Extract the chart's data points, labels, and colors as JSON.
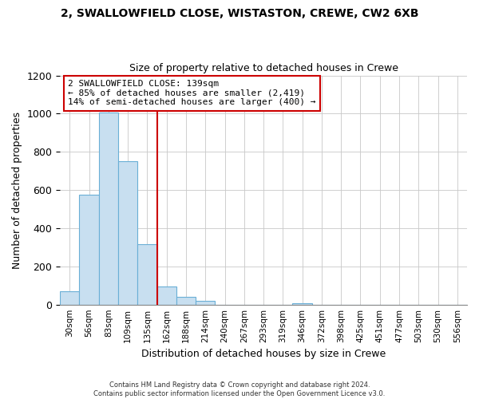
{
  "title": "2, SWALLOWFIELD CLOSE, WISTASTON, CREWE, CW2 6XB",
  "subtitle": "Size of property relative to detached houses in Crewe",
  "xlabel": "Distribution of detached houses by size in Crewe",
  "ylabel": "Number of detached properties",
  "bar_labels": [
    "30sqm",
    "56sqm",
    "83sqm",
    "109sqm",
    "135sqm",
    "162sqm",
    "188sqm",
    "214sqm",
    "240sqm",
    "267sqm",
    "293sqm",
    "319sqm",
    "346sqm",
    "372sqm",
    "398sqm",
    "425sqm",
    "451sqm",
    "477sqm",
    "503sqm",
    "530sqm",
    "556sqm"
  ],
  "bar_heights": [
    70,
    575,
    1005,
    750,
    315,
    95,
    40,
    20,
    0,
    0,
    0,
    0,
    5,
    0,
    0,
    0,
    0,
    0,
    0,
    0,
    0
  ],
  "bar_color": "#c8dff0",
  "bar_edge_color": "#6aafd6",
  "highlight_bar_index": 4,
  "highlight_color": "#cc0000",
  "ylim": [
    0,
    1200
  ],
  "yticks": [
    0,
    200,
    400,
    600,
    800,
    1000,
    1200
  ],
  "annotation_line1": "2 SWALLOWFIELD CLOSE: 139sqm",
  "annotation_line2": "← 85% of detached houses are smaller (2,419)",
  "annotation_line3": "14% of semi-detached houses are larger (400) →",
  "footer_line1": "Contains HM Land Registry data © Crown copyright and database right 2024.",
  "footer_line2": "Contains public sector information licensed under the Open Government Licence v3.0.",
  "background_color": "#ffffff",
  "grid_color": "#c8c8c8"
}
